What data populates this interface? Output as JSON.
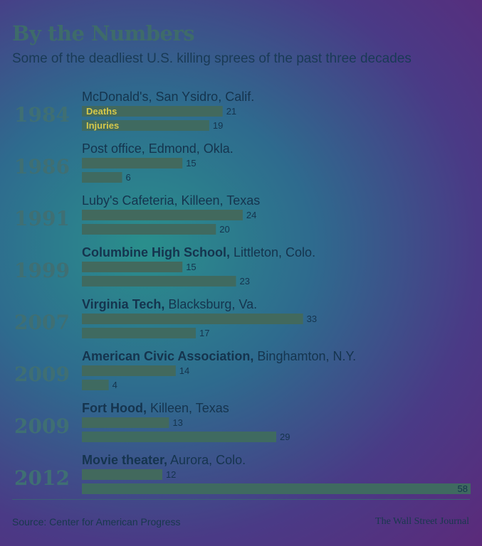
{
  "header": {
    "title": "By the Numbers",
    "subtitle": "Some of the deadliest U.S. killing sprees of the past three decades"
  },
  "footer": {
    "source": "Source: Center for American Progress",
    "credit": "The Wall Street Journal"
  },
  "colors": {
    "background": "#3a6a8c",
    "deaths_bar": "#42695d",
    "injuries_bar": "#3f6a60",
    "year": "#3f6f73",
    "label": "#15344e",
    "legend_text": "#d6c84a"
  },
  "chart_data": {
    "type": "bar",
    "orientation": "horizontal",
    "legend_placement": "inside first bars",
    "series_labels": [
      "Deaths",
      "Injuries"
    ],
    "xlim": [
      0,
      58
    ],
    "rows": [
      {
        "year": "1984",
        "bold": "",
        "place": "McDonald's, San Ysidro, Calif.",
        "deaths": 21,
        "injuries": 19
      },
      {
        "year": "1986",
        "bold": "",
        "place": "Post office, Edmond, Okla.",
        "deaths": 15,
        "injuries": 6
      },
      {
        "year": "1991",
        "bold": "",
        "place": "Luby's Cafeteria, Killeen, Texas",
        "deaths": 24,
        "injuries": 20
      },
      {
        "year": "1999",
        "bold": "Columbine High School,",
        "place": " Littleton, Colo.",
        "deaths": 15,
        "injuries": 23
      },
      {
        "year": "2007",
        "bold": "Virginia Tech,",
        "place": " Blacksburg, Va.",
        "deaths": 33,
        "injuries": 17
      },
      {
        "year": "2009",
        "bold": "American Civic Association,",
        "place": " Binghamton, N.Y.",
        "deaths": 14,
        "injuries": 4
      },
      {
        "year": "2009",
        "bold": "Fort Hood,",
        "place": " Killeen, Texas",
        "deaths": 13,
        "injuries": 29
      },
      {
        "year": "2012",
        "bold": "Movie theater,",
        "place": " Aurora, Colo.",
        "deaths": 12,
        "injuries": 58
      }
    ]
  }
}
